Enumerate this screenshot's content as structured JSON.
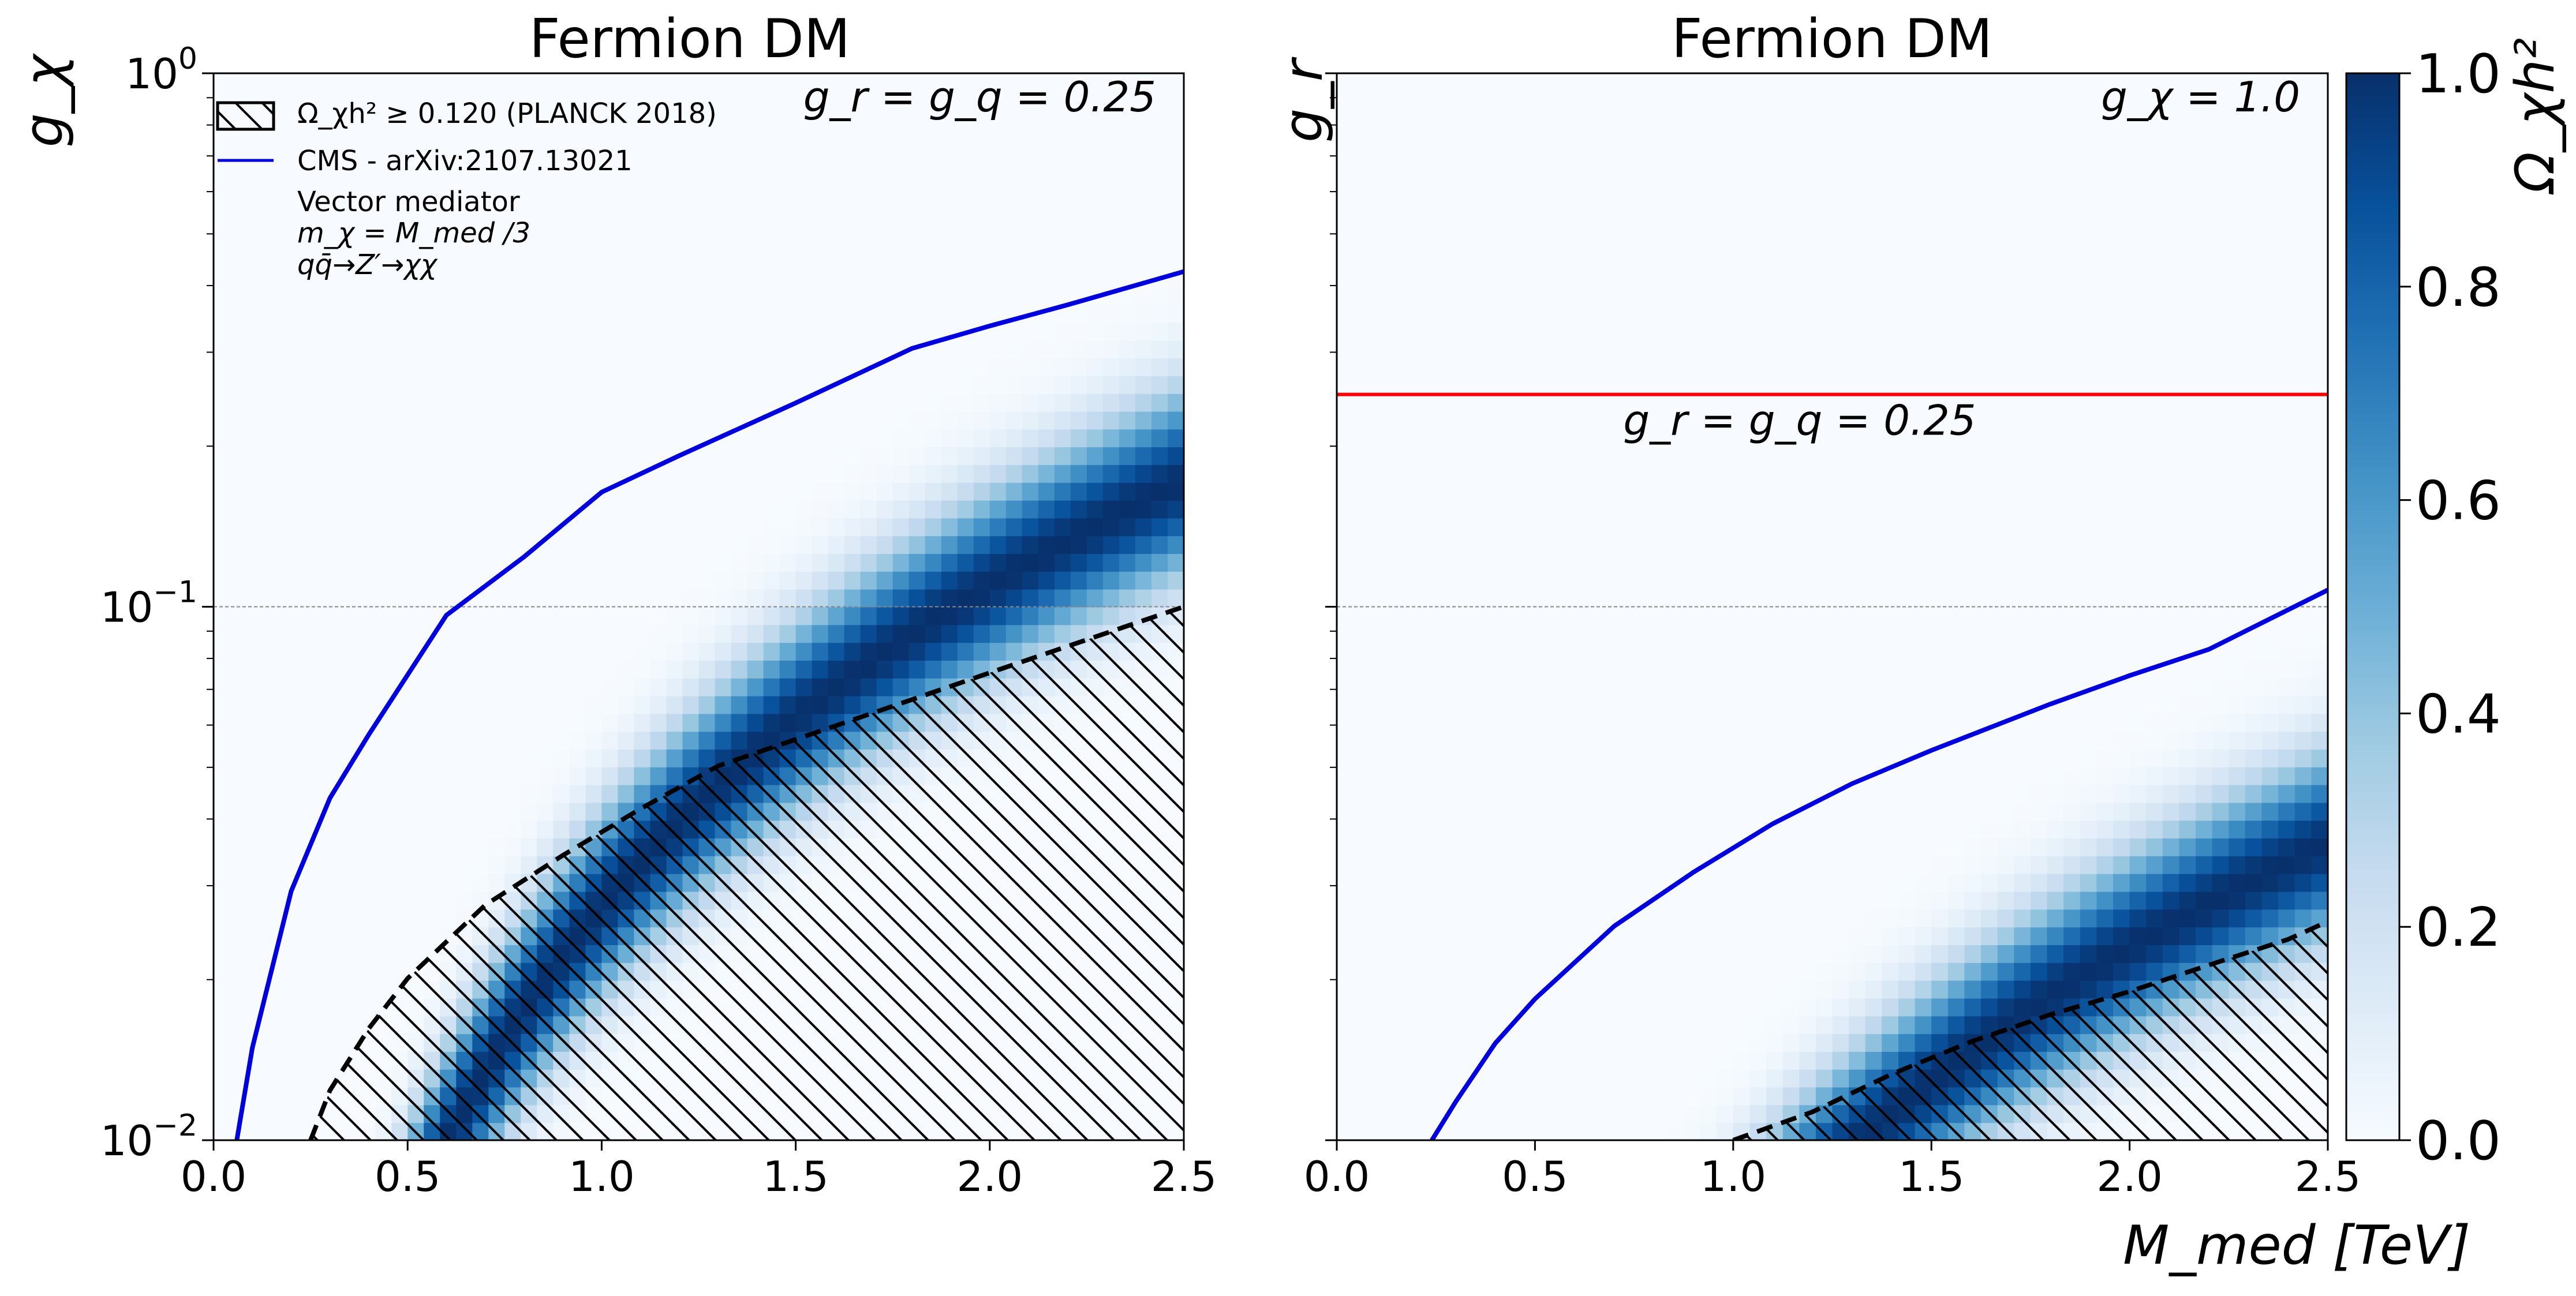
{
  "figure": {
    "xlabel": "M_med [TeV]",
    "colorbar": {
      "label": "Ω_χh²",
      "range": [
        0.0,
        1.0
      ],
      "ticks": [
        "0.0",
        "0.2",
        "0.4",
        "0.6",
        "0.8",
        "1.0"
      ],
      "colormap": [
        "#f7fbff",
        "#deebf7",
        "#c6dbef",
        "#9ecae1",
        "#6baed6",
        "#4292c6",
        "#2171b5",
        "#08519c",
        "#08306b"
      ]
    },
    "colors": {
      "cms_line": "#0000dd",
      "reference_line": "#ff0000",
      "relic_boundary": "#000000",
      "gridline": "#888888"
    }
  },
  "chart_data": [
    {
      "type": "heatmap",
      "title": "Fermion DM",
      "ylabel": "g_χ",
      "xlim": [
        0.0,
        2.5
      ],
      "ylim": [
        0.01,
        1.0
      ],
      "yscale": "log",
      "xticks": [
        "0.0",
        "0.5",
        "1.0",
        "1.5",
        "2.0",
        "2.5"
      ],
      "yticks": [
        {
          "value": 1.0,
          "base": "10",
          "exp": "0"
        },
        {
          "value": 0.1,
          "base": "10",
          "exp": "−1"
        },
        {
          "value": 0.01,
          "base": "10",
          "exp": "−2"
        }
      ],
      "corner_annotation": "g_r = g_q = 0.25",
      "legend": {
        "placement": "top-left",
        "entries": [
          {
            "label": "Ω_χh² ≥ 0.120 (PLANCK 2018)",
            "style": "hatched-patch"
          },
          {
            "label": "CMS - arXiv:2107.13021",
            "style": "blue-line"
          }
        ],
        "notes": [
          "Vector mediator",
          "m_χ = M_med /3",
          "qq̄→Z′→χχ"
        ]
      },
      "cms_curve": {
        "x": [
          0.06,
          0.1,
          0.2,
          0.3,
          0.4,
          0.6,
          0.8,
          1.0,
          1.2,
          1.5,
          1.8,
          2.0,
          2.2,
          2.5
        ],
        "y": [
          0.01,
          0.0149,
          0.0293,
          0.0438,
          0.0576,
          0.0964,
          0.124,
          0.164,
          0.192,
          0.241,
          0.305,
          0.336,
          0.368,
          0.425
        ]
      },
      "relic_boundary": {
        "x": [
          0.25,
          0.3,
          0.4,
          0.5,
          0.7,
          0.9,
          1.1,
          1.3,
          1.5,
          1.8,
          2.0,
          2.2,
          2.5
        ],
        "y": [
          0.01,
          0.0124,
          0.0162,
          0.0201,
          0.0276,
          0.0342,
          0.0418,
          0.0503,
          0.0564,
          0.067,
          0.0752,
          0.0843,
          0.1
        ]
      },
      "gridline_y": 0.1,
      "colormap_model": {
        "center_slope": 0.0275,
        "width": 0.12
      }
    },
    {
      "type": "heatmap",
      "title": "Fermion DM",
      "ylabel": "g_r",
      "xlim": [
        0.0,
        2.5
      ],
      "ylim": [
        0.01,
        1.0
      ],
      "yscale": "log",
      "xticks": [
        "0.0",
        "0.5",
        "1.0",
        "1.5",
        "2.0",
        "2.5"
      ],
      "yticks": [],
      "corner_annotation": "g_χ = 1.0",
      "reference_line": {
        "y": 0.25,
        "label": "g_r = g_q = 0.25"
      },
      "cms_curve": {
        "x": [
          0.24,
          0.3,
          0.4,
          0.5,
          0.7,
          0.9,
          1.1,
          1.3,
          1.5,
          1.8,
          2.0,
          2.2,
          2.5
        ],
        "y": [
          0.01,
          0.0118,
          0.0152,
          0.0184,
          0.0252,
          0.0318,
          0.0392,
          0.0466,
          0.0538,
          0.0657,
          0.0743,
          0.0832,
          0.1075
        ]
      },
      "relic_boundary": {
        "x": [
          1.0,
          1.2,
          1.4,
          1.6,
          1.8,
          2.0,
          2.2,
          2.4,
          2.5
        ],
        "y": [
          0.01,
          0.0113,
          0.0133,
          0.0153,
          0.0172,
          0.019,
          0.0213,
          0.0238,
          0.0257
        ]
      },
      "gridline_y": 0.1,
      "colormap_model": {
        "center_slope": 0.00575,
        "width": 0.12
      }
    }
  ]
}
